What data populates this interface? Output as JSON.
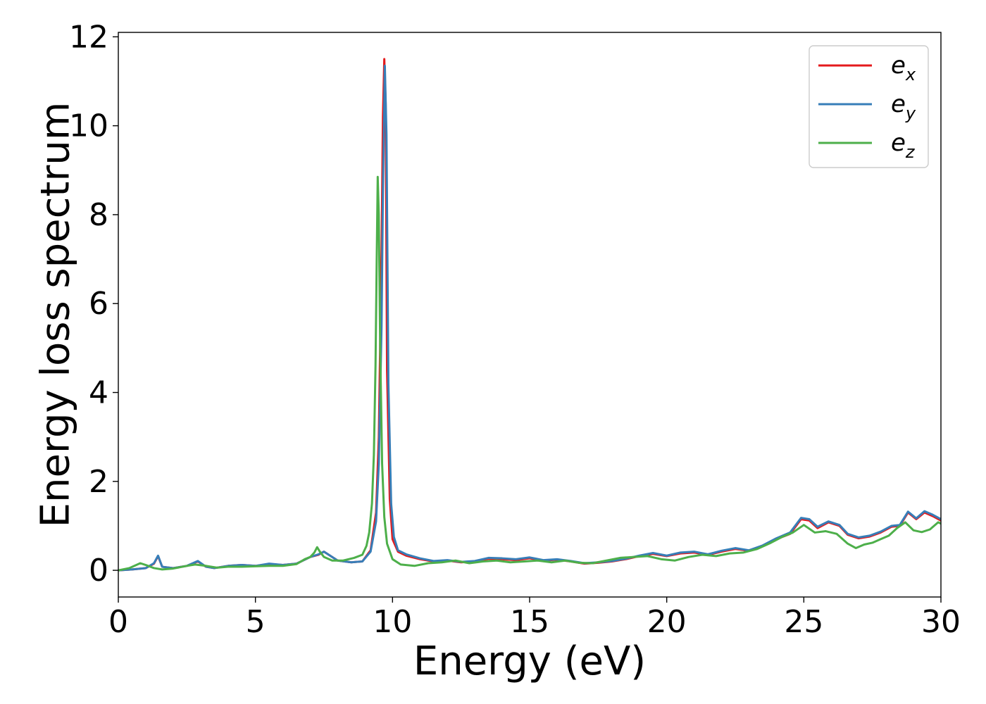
{
  "chart_data": {
    "type": "line",
    "title": "",
    "xlabel": "Energy (eV)",
    "ylabel": "Energy loss spectrum",
    "xlim": [
      0,
      30
    ],
    "ylim": [
      -0.6,
      12.1
    ],
    "xticks": [
      0,
      5,
      10,
      15,
      20,
      25,
      30
    ],
    "yticks": [
      0,
      2,
      4,
      6,
      8,
      10,
      12
    ],
    "grid": false,
    "legend_position": "top-right",
    "series": [
      {
        "name": "e_x",
        "legend_base": "e",
        "legend_sub": "x",
        "color": "#e41a1c",
        "x": [
          0,
          0.5,
          1.0,
          1.3,
          1.45,
          1.6,
          2.0,
          2.5,
          2.9,
          3.2,
          3.5,
          4.0,
          4.5,
          5.0,
          5.5,
          6.0,
          6.5,
          7.0,
          7.3,
          7.5,
          8.0,
          8.5,
          8.9,
          9.2,
          9.4,
          9.5,
          9.6,
          9.65,
          9.7,
          9.75,
          9.8,
          9.9,
          10.0,
          10.2,
          10.5,
          11.0,
          11.5,
          12.0,
          12.5,
          13.0,
          13.5,
          14.0,
          14.5,
          15.0,
          15.5,
          16.0,
          16.5,
          17.0,
          17.5,
          18.0,
          18.5,
          19.0,
          19.5,
          20.0,
          20.5,
          21.0,
          21.5,
          22.0,
          22.5,
          23.0,
          23.5,
          24.0,
          24.5,
          24.9,
          25.2,
          25.5,
          25.9,
          26.3,
          26.6,
          27.0,
          27.4,
          27.8,
          28.2,
          28.5,
          28.8,
          29.1,
          29.4,
          29.7,
          30.0
        ],
        "values": [
          0.0,
          0.02,
          0.05,
          0.15,
          0.32,
          0.08,
          0.05,
          0.1,
          0.2,
          0.08,
          0.05,
          0.1,
          0.12,
          0.1,
          0.14,
          0.12,
          0.15,
          0.3,
          0.35,
          0.42,
          0.22,
          0.18,
          0.2,
          0.45,
          1.3,
          3.0,
          7.2,
          10.2,
          11.5,
          10.5,
          4.5,
          1.6,
          0.7,
          0.42,
          0.33,
          0.25,
          0.2,
          0.22,
          0.18,
          0.2,
          0.26,
          0.25,
          0.23,
          0.27,
          0.22,
          0.24,
          0.2,
          0.15,
          0.17,
          0.2,
          0.25,
          0.32,
          0.37,
          0.32,
          0.38,
          0.4,
          0.35,
          0.42,
          0.48,
          0.44,
          0.55,
          0.7,
          0.82,
          1.15,
          1.12,
          0.95,
          1.08,
          1.0,
          0.8,
          0.72,
          0.76,
          0.85,
          0.98,
          1.0,
          1.3,
          1.15,
          1.3,
          1.22,
          1.12
        ]
      },
      {
        "name": "e_y",
        "legend_base": "e",
        "legend_sub": "y",
        "color": "#377eb8",
        "x": [
          0,
          0.5,
          1.0,
          1.3,
          1.45,
          1.6,
          2.0,
          2.5,
          2.9,
          3.2,
          3.5,
          4.0,
          4.5,
          5.0,
          5.5,
          6.0,
          6.5,
          7.0,
          7.3,
          7.5,
          8.0,
          8.5,
          8.9,
          9.2,
          9.4,
          9.5,
          9.6,
          9.65,
          9.72,
          9.78,
          9.85,
          9.95,
          10.05,
          10.2,
          10.5,
          11.0,
          11.5,
          12.0,
          12.5,
          13.0,
          13.5,
          14.0,
          14.5,
          15.0,
          15.5,
          16.0,
          16.5,
          17.0,
          17.5,
          18.0,
          18.5,
          19.0,
          19.5,
          20.0,
          20.5,
          21.0,
          21.5,
          22.0,
          22.5,
          23.0,
          23.5,
          24.0,
          24.5,
          24.9,
          25.2,
          25.5,
          25.9,
          26.3,
          26.6,
          27.0,
          27.4,
          27.8,
          28.2,
          28.5,
          28.8,
          29.1,
          29.4,
          29.7,
          30.0
        ],
        "values": [
          0.0,
          0.02,
          0.05,
          0.16,
          0.33,
          0.08,
          0.05,
          0.1,
          0.21,
          0.08,
          0.05,
          0.1,
          0.12,
          0.1,
          0.15,
          0.12,
          0.15,
          0.3,
          0.36,
          0.42,
          0.22,
          0.18,
          0.2,
          0.42,
          1.1,
          2.4,
          5.5,
          8.5,
          11.35,
          9.8,
          4.2,
          1.5,
          0.75,
          0.45,
          0.36,
          0.27,
          0.21,
          0.23,
          0.19,
          0.21,
          0.28,
          0.27,
          0.25,
          0.29,
          0.23,
          0.25,
          0.21,
          0.16,
          0.18,
          0.21,
          0.26,
          0.33,
          0.39,
          0.33,
          0.4,
          0.42,
          0.36,
          0.44,
          0.5,
          0.45,
          0.56,
          0.72,
          0.85,
          1.18,
          1.15,
          0.98,
          1.1,
          1.02,
          0.82,
          0.74,
          0.78,
          0.87,
          1.0,
          1.02,
          1.32,
          1.17,
          1.33,
          1.25,
          1.15
        ]
      },
      {
        "name": "e_z",
        "legend_base": "e",
        "legend_sub": "z",
        "color": "#4daf4a",
        "x": [
          0,
          0.4,
          0.8,
          1.0,
          1.3,
          1.6,
          2.0,
          2.5,
          2.8,
          3.2,
          3.6,
          4.0,
          4.5,
          5.0,
          5.5,
          6.0,
          6.5,
          6.8,
          7.0,
          7.15,
          7.25,
          7.35,
          7.5,
          7.8,
          8.2,
          8.6,
          8.9,
          9.05,
          9.15,
          9.25,
          9.32,
          9.38,
          9.42,
          9.46,
          9.5,
          9.55,
          9.62,
          9.7,
          9.8,
          10.0,
          10.3,
          10.8,
          11.3,
          11.8,
          12.3,
          12.8,
          13.3,
          13.8,
          14.3,
          14.8,
          15.3,
          15.8,
          16.3,
          16.8,
          17.3,
          17.8,
          18.3,
          18.8,
          19.3,
          19.8,
          20.3,
          20.8,
          21.3,
          21.8,
          22.3,
          22.8,
          23.3,
          23.8,
          24.2,
          24.6,
          25.0,
          25.4,
          25.8,
          26.2,
          26.6,
          26.9,
          27.2,
          27.5,
          27.8,
          28.1,
          28.4,
          28.7,
          29.0,
          29.3,
          29.6,
          29.9,
          30.0
        ],
        "values": [
          0.0,
          0.05,
          0.16,
          0.12,
          0.05,
          0.02,
          0.04,
          0.1,
          0.13,
          0.1,
          0.06,
          0.08,
          0.08,
          0.09,
          0.1,
          0.1,
          0.14,
          0.25,
          0.3,
          0.4,
          0.52,
          0.42,
          0.3,
          0.22,
          0.22,
          0.28,
          0.35,
          0.55,
          0.85,
          1.5,
          2.6,
          4.6,
          6.8,
          8.85,
          8.0,
          5.0,
          2.4,
          1.2,
          0.6,
          0.25,
          0.13,
          0.1,
          0.16,
          0.18,
          0.22,
          0.16,
          0.2,
          0.22,
          0.18,
          0.2,
          0.22,
          0.18,
          0.22,
          0.17,
          0.16,
          0.22,
          0.28,
          0.3,
          0.32,
          0.25,
          0.22,
          0.3,
          0.35,
          0.32,
          0.38,
          0.4,
          0.48,
          0.62,
          0.75,
          0.85,
          1.02,
          0.85,
          0.88,
          0.82,
          0.6,
          0.5,
          0.58,
          0.62,
          0.7,
          0.78,
          0.95,
          1.08,
          0.9,
          0.86,
          0.92,
          1.08,
          1.05
        ]
      }
    ]
  }
}
